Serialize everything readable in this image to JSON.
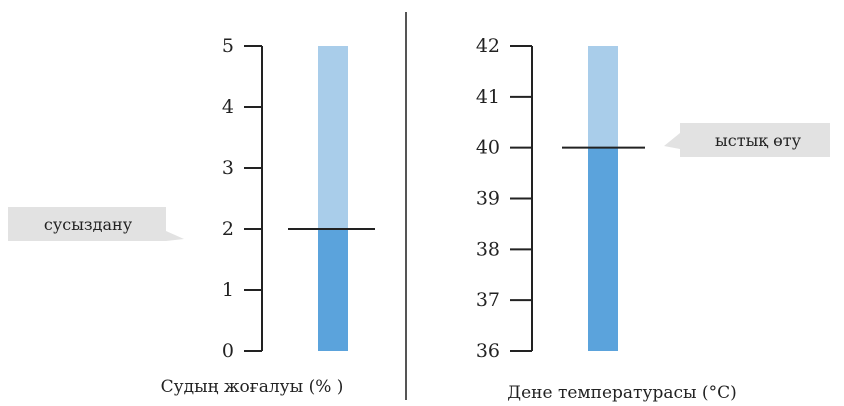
{
  "chart_data": [
    {
      "type": "bar",
      "orientation": "vertical",
      "xlabel": "Судың жоғалуы (% )",
      "ylim": [
        0,
        5
      ],
      "ticks": [
        "0",
        "1",
        "2",
        "3",
        "4",
        "5"
      ],
      "value": 2,
      "threshold": {
        "value": 2,
        "label": "сусыздану",
        "side": "left"
      },
      "colors": {
        "fill": "#5ba3dc",
        "track": "#a9cdea"
      }
    },
    {
      "type": "bar",
      "orientation": "vertical",
      "xlabel": "Дене температурасы (°C)",
      "ylim": [
        36,
        42
      ],
      "ticks": [
        "36",
        "37",
        "38",
        "39",
        "40",
        "41",
        "42"
      ],
      "value": 40,
      "threshold": {
        "value": 40,
        "label": "ыстық өту",
        "side": "right"
      },
      "colors": {
        "fill": "#5ba3dc",
        "track": "#a9cdea"
      }
    }
  ]
}
